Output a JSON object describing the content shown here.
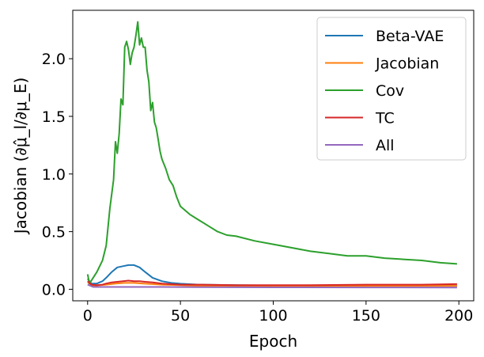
{
  "chart_data": {
    "type": "line",
    "xlabel": "Epoch",
    "ylabel": "Jacobian (∂μ̂_l/∂μ_E)",
    "xlim": [
      -8,
      208
    ],
    "ylim": [
      -0.1,
      2.42
    ],
    "xticks": [
      0,
      50,
      100,
      150,
      200
    ],
    "xtick_labels": [
      "0",
      "50",
      "100",
      "150",
      "200"
    ],
    "yticks": [
      0.0,
      0.5,
      1.0,
      1.5,
      2.0
    ],
    "ytick_labels": [
      "0.0",
      "0.5",
      "1.0",
      "1.5",
      "2.0"
    ],
    "grid": false,
    "legend_position": "top-right",
    "series": [
      {
        "name": "Beta-VAE",
        "color": "#1f77b4",
        "x": [
          0,
          2,
          5,
          8,
          10,
          13,
          16,
          19,
          22,
          25,
          28,
          31,
          35,
          40,
          45,
          50,
          60,
          80,
          100,
          120,
          150,
          180,
          199
        ],
        "y": [
          0.09,
          0.05,
          0.05,
          0.07,
          0.1,
          0.15,
          0.19,
          0.2,
          0.21,
          0.21,
          0.19,
          0.15,
          0.1,
          0.07,
          0.055,
          0.048,
          0.04,
          0.035,
          0.032,
          0.03,
          0.03,
          0.03,
          0.03
        ]
      },
      {
        "name": "Jacobian",
        "color": "#ff7f0e",
        "x": [
          0,
          3,
          6,
          10,
          15,
          20,
          25,
          30,
          35,
          40,
          50,
          60,
          80,
          100,
          150,
          199
        ],
        "y": [
          0.06,
          0.03,
          0.035,
          0.04,
          0.05,
          0.055,
          0.055,
          0.05,
          0.045,
          0.04,
          0.035,
          0.03,
          0.03,
          0.03,
          0.03,
          0.03
        ]
      },
      {
        "name": "Cov",
        "color": "#2ca02c",
        "x": [
          0,
          1,
          3,
          5,
          8,
          10,
          12,
          14,
          15,
          16,
          17,
          18,
          19,
          20,
          21,
          22,
          23,
          24,
          25,
          26,
          27,
          28,
          29,
          30,
          31,
          32,
          33,
          34,
          35,
          36,
          37,
          38,
          39,
          40,
          42,
          44,
          46,
          48,
          50,
          55,
          60,
          65,
          70,
          75,
          80,
          90,
          100,
          110,
          120,
          130,
          140,
          150,
          160,
          170,
          180,
          190,
          199
        ],
        "y": [
          0.13,
          0.05,
          0.1,
          0.15,
          0.25,
          0.38,
          0.7,
          0.95,
          1.28,
          1.18,
          1.35,
          1.65,
          1.6,
          2.1,
          2.15,
          2.08,
          1.95,
          2.05,
          2.1,
          2.2,
          2.32,
          2.12,
          2.18,
          2.1,
          2.1,
          1.9,
          1.8,
          1.55,
          1.62,
          1.45,
          1.4,
          1.3,
          1.2,
          1.13,
          1.05,
          0.95,
          0.9,
          0.8,
          0.72,
          0.65,
          0.6,
          0.55,
          0.5,
          0.47,
          0.46,
          0.42,
          0.39,
          0.36,
          0.33,
          0.31,
          0.29,
          0.29,
          0.27,
          0.26,
          0.25,
          0.23,
          0.22
        ]
      },
      {
        "name": "TC",
        "color": "#d62728",
        "x": [
          0,
          2,
          5,
          8,
          10,
          13,
          16,
          19,
          22,
          25,
          28,
          31,
          35,
          40,
          50,
          60,
          80,
          100,
          120,
          150,
          180,
          199
        ],
        "y": [
          0.07,
          0.04,
          0.035,
          0.04,
          0.05,
          0.06,
          0.065,
          0.07,
          0.075,
          0.07,
          0.07,
          0.065,
          0.06,
          0.05,
          0.04,
          0.04,
          0.035,
          0.035,
          0.035,
          0.04,
          0.04,
          0.045
        ]
      },
      {
        "name": "All",
        "color": "#9467bd",
        "x": [
          0,
          3,
          10,
          20,
          40,
          60,
          100,
          150,
          199
        ],
        "y": [
          0.04,
          0.02,
          0.02,
          0.02,
          0.02,
          0.018,
          0.017,
          0.016,
          0.015
        ]
      }
    ]
  }
}
